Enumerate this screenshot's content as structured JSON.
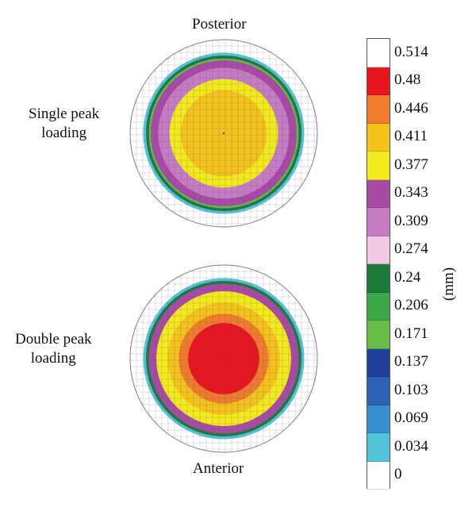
{
  "labels": {
    "top": "Posterior",
    "bottom": "Anterior",
    "upper_line1": "Single peak",
    "upper_line2": "loading",
    "lower_line1": "Double peak",
    "lower_line2": "loading"
  },
  "colorbar": {
    "unit": "(mm)",
    "ticks": [
      "0.514",
      "0.48",
      "0.446",
      "0.411",
      "0.377",
      "0.343",
      "0.309",
      "0.274",
      "0.24",
      "0.206",
      "0.171",
      "0.137",
      "0.103",
      "0.069",
      "0.034",
      "0"
    ],
    "colors": [
      "#ffffff",
      "#e8141e",
      "#f07b2a",
      "#f5c21a",
      "#f2ea1a",
      "#a94aa5",
      "#c67cc2",
      "#f2c8e2",
      "#1d7b3a",
      "#3aa849",
      "#67bc46",
      "#1f3f9a",
      "#2c63b8",
      "#3a8fd0",
      "#53c3d9",
      "#ffffff"
    ]
  },
  "discs": [
    {
      "name": "single",
      "rings": [
        {
          "r": 1.0,
          "color": "#ffffff"
        },
        {
          "r": 0.86,
          "color": "#53c3d9"
        },
        {
          "r": 0.83,
          "color": "#1d7b3a"
        },
        {
          "r": 0.8,
          "color": "#67bc46"
        },
        {
          "r": 0.78,
          "color": "#a94aa5"
        },
        {
          "r": 0.7,
          "color": "#c67cc2"
        },
        {
          "r": 0.58,
          "color": "#f2ea1a"
        },
        {
          "r": 0.46,
          "color": "#f5c21a"
        }
      ]
    },
    {
      "name": "double",
      "rings": [
        {
          "r": 1.0,
          "color": "#ffffff"
        },
        {
          "r": 0.86,
          "color": "#53c3d9"
        },
        {
          "r": 0.83,
          "color": "#1d7b3a"
        },
        {
          "r": 0.8,
          "color": "#a94aa5"
        },
        {
          "r": 0.72,
          "color": "#f2ea1a"
        },
        {
          "r": 0.6,
          "color": "#f5c21a"
        },
        {
          "r": 0.48,
          "color": "#f07b2a"
        },
        {
          "r": 0.38,
          "color": "#e8141e"
        }
      ]
    }
  ]
}
